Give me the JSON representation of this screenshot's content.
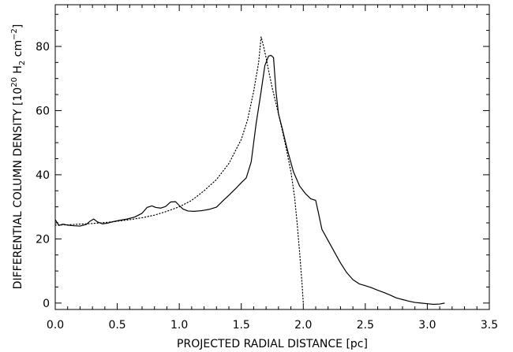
{
  "chart_data": {
    "type": "line",
    "title": "",
    "xlabel": "PROJECTED RADIAL DISTANCE [pc]",
    "ylabel": {
      "pre": "DIFFERENTIAL COLUMN DENSITY [10",
      "exp1": "20",
      "mid": " H",
      "sub": "2",
      "post1": " cm",
      "exp2": "−2",
      "post2": "]"
    },
    "xlim": [
      0.0,
      3.5
    ],
    "ylim": [
      -2,
      93
    ],
    "x_ticks": [
      0.0,
      0.5,
      1.0,
      1.5,
      2.0,
      2.5,
      3.0,
      3.5
    ],
    "x_tick_labels": [
      "0.0",
      "0.5",
      "1.0",
      "1.5",
      "2.0",
      "2.5",
      "3.0",
      "3.5"
    ],
    "y_ticks": [
      0,
      20,
      40,
      60,
      80
    ],
    "y_tick_labels": [
      "0",
      "20",
      "40",
      "60",
      "80"
    ],
    "grid": false,
    "series": [
      {
        "style": "solid",
        "x": [
          0.0,
          0.03,
          0.06,
          0.1,
          0.15,
          0.2,
          0.25,
          0.28,
          0.31,
          0.34,
          0.38,
          0.42,
          0.47,
          0.52,
          0.58,
          0.64,
          0.7,
          0.74,
          0.78,
          0.81,
          0.85,
          0.89,
          0.93,
          0.97,
          1.0,
          1.03,
          1.07,
          1.12,
          1.18,
          1.24,
          1.3,
          1.35,
          1.4,
          1.45,
          1.5,
          1.54,
          1.58,
          1.62,
          1.66,
          1.69,
          1.72,
          1.74,
          1.76,
          1.78,
          1.8,
          1.83,
          1.87,
          1.92,
          1.97,
          2.02,
          2.06,
          2.1,
          2.12,
          2.15,
          2.2,
          2.25,
          2.3,
          2.35,
          2.4,
          2.45,
          2.5,
          2.55,
          2.6,
          2.65,
          2.7,
          2.75,
          2.8,
          2.85,
          2.9,
          2.95,
          3.0,
          3.05,
          3.1,
          3.14
        ],
        "y": [
          26.0,
          24.2,
          24.6,
          24.3,
          24.1,
          24.0,
          24.5,
          25.5,
          26.2,
          25.3,
          24.7,
          24.9,
          25.4,
          25.8,
          26.2,
          26.8,
          28.0,
          29.8,
          30.3,
          29.8,
          29.6,
          30.1,
          31.5,
          31.6,
          30.4,
          29.3,
          28.7,
          28.6,
          28.8,
          29.2,
          29.9,
          31.8,
          33.6,
          35.5,
          37.5,
          39.0,
          44.0,
          56.0,
          66.0,
          74.0,
          77.0,
          77.2,
          76.5,
          66.0,
          59.0,
          54.5,
          48.0,
          41.0,
          36.5,
          34.0,
          32.5,
          32.0,
          28.5,
          23.0,
          19.5,
          16.0,
          12.5,
          9.5,
          7.3,
          6.0,
          5.4,
          4.8,
          4.0,
          3.3,
          2.5,
          1.6,
          1.1,
          0.6,
          0.2,
          0.0,
          -0.2,
          -0.4,
          -0.3,
          0.0
        ]
      },
      {
        "style": "dotted",
        "x": [
          0.0,
          0.1,
          0.2,
          0.3,
          0.4,
          0.5,
          0.6,
          0.7,
          0.8,
          0.9,
          1.0,
          1.1,
          1.2,
          1.3,
          1.4,
          1.5,
          1.55,
          1.6,
          1.64,
          1.66,
          1.68,
          1.7,
          1.72,
          1.75,
          1.8,
          1.85,
          1.9,
          1.93,
          1.95,
          1.97,
          1.99,
          2.0
        ],
        "y": [
          24.3,
          24.4,
          24.6,
          24.8,
          25.1,
          25.5,
          26.0,
          26.6,
          27.4,
          28.6,
          30.0,
          32.0,
          35.0,
          38.5,
          43.5,
          51.0,
          57.0,
          66.0,
          75.0,
          83.0,
          80.0,
          76.5,
          72.5,
          67.0,
          59.0,
          50.5,
          41.0,
          33.0,
          25.0,
          16.0,
          6.0,
          0.0
        ]
      }
    ]
  }
}
